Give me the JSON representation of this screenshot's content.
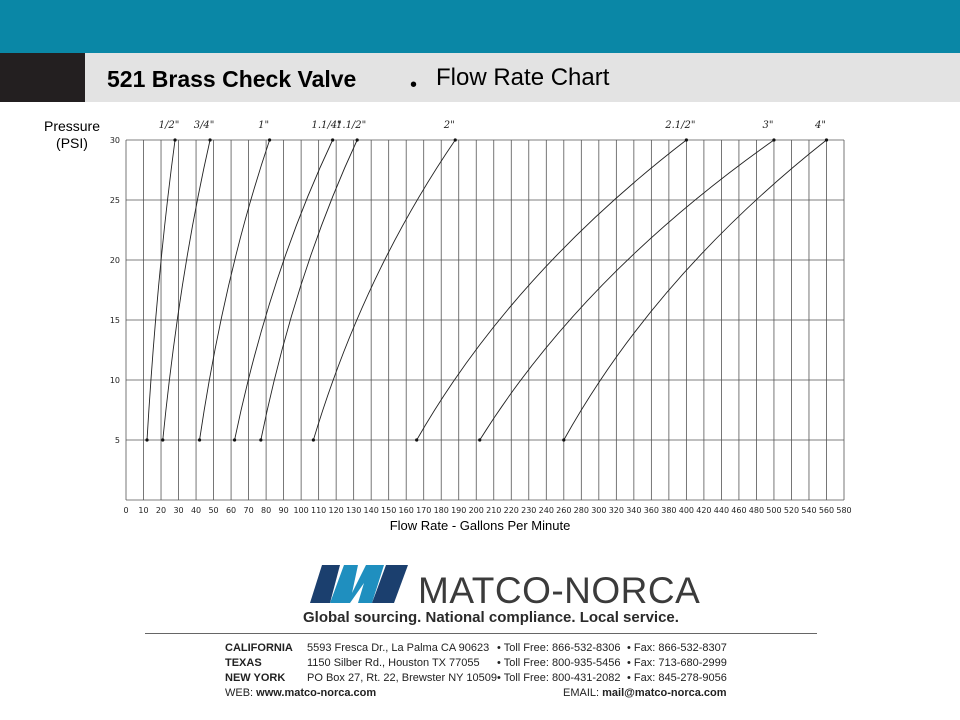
{
  "header": {
    "title": "521 Brass Check Valve",
    "bullet": "•",
    "subtitle": "Flow Rate Chart"
  },
  "colors": {
    "top_bar": "#0a87a6",
    "dark_block": "#231f20",
    "title_bar": "#e3e3e3",
    "logo_blue": "#1f8fbf",
    "logo_navy": "#1b3f6e"
  },
  "chart_data": {
    "type": "line",
    "ylabel": "Pressure\n(PSI)",
    "xlabel": "Flow Rate  - Gallons Per Minute",
    "xlim": [
      0,
      580
    ],
    "ylim": [
      0,
      30
    ],
    "x_ticks": [
      0,
      10,
      20,
      30,
      40,
      50,
      60,
      70,
      80,
      90,
      100,
      110,
      120,
      130,
      140,
      150,
      160,
      170,
      180,
      190,
      200,
      210,
      220,
      230,
      240,
      260,
      280,
      300,
      320,
      340,
      360,
      380,
      400,
      420,
      440,
      460,
      480,
      500,
      520,
      540,
      560,
      580
    ],
    "y_ticks": [
      5,
      10,
      15,
      20,
      25,
      30
    ],
    "grid": true,
    "series": [
      {
        "name": "1/2\"",
        "points": [
          [
            12,
            5
          ],
          [
            28,
            30
          ]
        ]
      },
      {
        "name": "3/4\"",
        "points": [
          [
            21,
            5
          ],
          [
            48,
            30
          ]
        ]
      },
      {
        "name": "1\"",
        "points": [
          [
            42,
            5
          ],
          [
            82,
            30
          ]
        ]
      },
      {
        "name": "1.1/4\"",
        "points": [
          [
            62,
            5
          ],
          [
            118,
            30
          ]
        ]
      },
      {
        "name": "1.1/2\"",
        "points": [
          [
            77,
            5
          ],
          [
            132,
            30
          ]
        ]
      },
      {
        "name": "2\"",
        "points": [
          [
            107,
            5
          ],
          [
            188,
            30
          ]
        ]
      },
      {
        "name": "2.1/2\"",
        "points": [
          [
            166,
            5
          ],
          [
            400,
            30
          ]
        ]
      },
      {
        "name": "3\"",
        "points": [
          [
            202,
            5
          ],
          [
            500,
            30
          ]
        ]
      },
      {
        "name": "4\"",
        "points": [
          [
            260,
            5
          ],
          [
            560,
            30
          ]
        ]
      }
    ]
  },
  "footer": {
    "logo_icon": "matco-norca-m-logo",
    "brand": "MATCO-NORCA",
    "tagline": "Global sourcing. National compliance. Local service.",
    "offices": [
      {
        "state": "CALIFORNIA",
        "address": "5593 Fresca Dr., La Palma CA 90623",
        "toll_free": "• Toll Free: 866-532-8306",
        "fax": "• Fax: 866-532-8307"
      },
      {
        "state": "TEXAS",
        "address": "1150 Silber Rd., Houston TX 77055",
        "toll_free": "• Toll Free: 800-935-5456",
        "fax": "• Fax: 713-680-2999"
      },
      {
        "state": "NEW YORK",
        "address": "PO Box 27, Rt. 22, Brewster NY 10509",
        "toll_free": "• Toll Free: 800-431-2082",
        "fax": "• Fax: 845-278-9056"
      }
    ],
    "web_label": "WEB: ",
    "web": "www.matco-norca.com",
    "email_label": "EMAIL: ",
    "email": "mail@matco-norca.com"
  }
}
